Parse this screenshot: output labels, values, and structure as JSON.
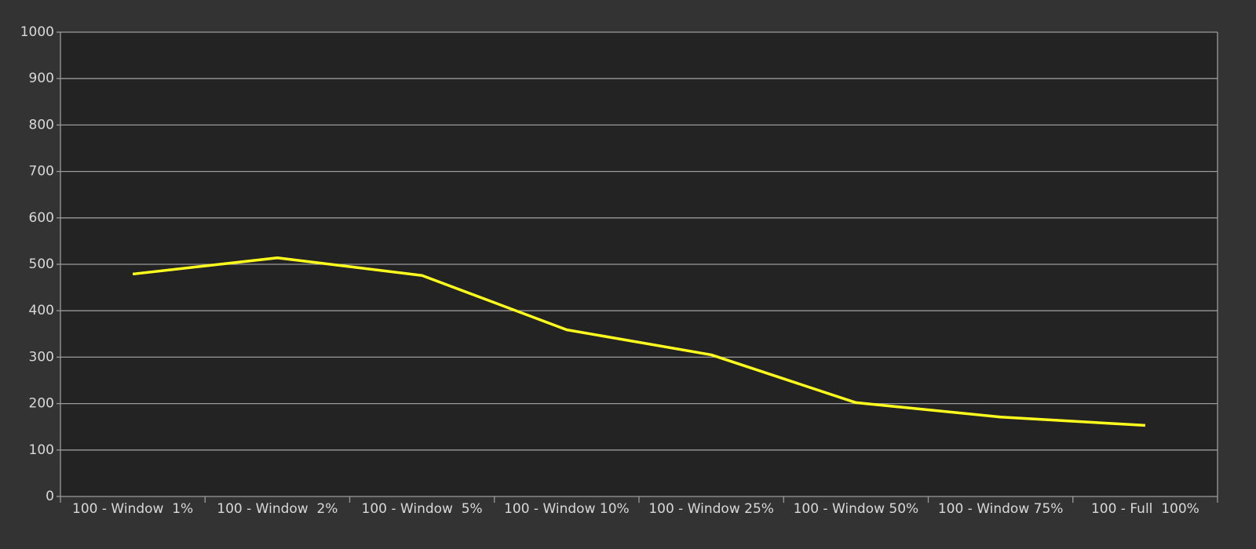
{
  "chart_data": {
    "type": "line",
    "categories": [
      "100 - Window  1%",
      "100 - Window  2%",
      "100 - Window  5%",
      "100 - Window 10%",
      "100 - Window 25%",
      "100 - Window 50%",
      "100 - Window 75%",
      "100 - Full  100%"
    ],
    "series": [
      {
        "color": "#ffff1e",
        "values": [
          479,
          514,
          476,
          359,
          305,
          202,
          171,
          153
        ]
      }
    ],
    "ylim": [
      0,
      1000
    ],
    "yticks": [
      0,
      100,
      200,
      300,
      400,
      500,
      600,
      700,
      800,
      900,
      1000
    ],
    "grid": true
  }
}
